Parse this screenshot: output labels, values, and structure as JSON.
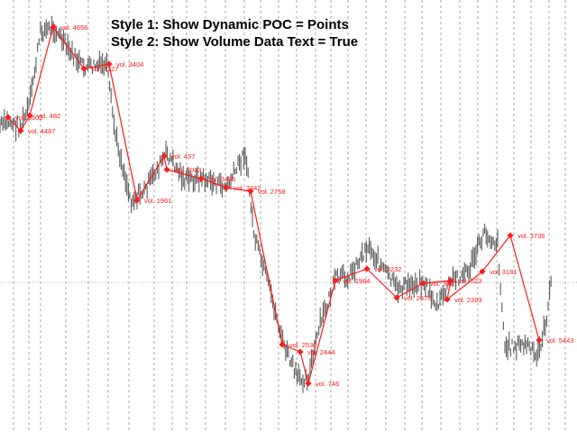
{
  "header": {
    "line1": "Style 1: Show Dynamic POC = Points",
    "line2": "Style 2: Show Volume Data Text = True"
  },
  "colors": {
    "background": "#ffffff",
    "price_bars": "#5a5a5a",
    "poc": "#ff1a1a",
    "grid": "#000000"
  },
  "chart_data": {
    "type": "line",
    "series": [
      {
        "role": "poc_points",
        "points": [
          {
            "label": "vol. 3502",
            "v": 3502
          },
          {
            "label": "vol. 4487",
            "v": 4487
          },
          {
            "label": "vol. 482",
            "v": 482
          },
          {
            "label": "vol. 4656",
            "v": 4656
          },
          {
            "label": "vol. 4127",
            "v": 4127
          },
          {
            "label": "vol. 3404",
            "v": 3404
          },
          {
            "label": "vol. 1961",
            "v": 1961
          },
          {
            "label": "vol. 437",
            "v": 437
          },
          {
            "label": "vol. 3063",
            "v": 3063
          },
          {
            "label": "vol. 3466",
            "v": 3466
          },
          {
            "label": "vol. 3342",
            "v": 3342
          },
          {
            "label": "vol. 2758",
            "v": 2758
          },
          {
            "label": "vol. 2530",
            "v": 2530
          },
          {
            "label": "vol. 2444",
            "v": 2444
          },
          {
            "label": "vol. 746",
            "v": 746
          },
          {
            "label": "vol. 1984",
            "v": 1984
          },
          {
            "label": "vol. 3232",
            "v": 3232
          },
          {
            "label": "vol. 2670",
            "v": 2670
          },
          {
            "label": "vol. 3807",
            "v": 3807
          },
          {
            "label": "vol. 523",
            "v": 523
          },
          {
            "label": "vol. 2393",
            "v": 2393
          },
          {
            "label": "vol. 3181",
            "v": 3181
          },
          {
            "label": "vol. 3736",
            "v": 3736
          },
          {
            "label": "vol. 5443",
            "v": 5443
          }
        ]
      }
    ],
    "grid_vertical": "dashed",
    "horizontal_reference": "dotted"
  }
}
